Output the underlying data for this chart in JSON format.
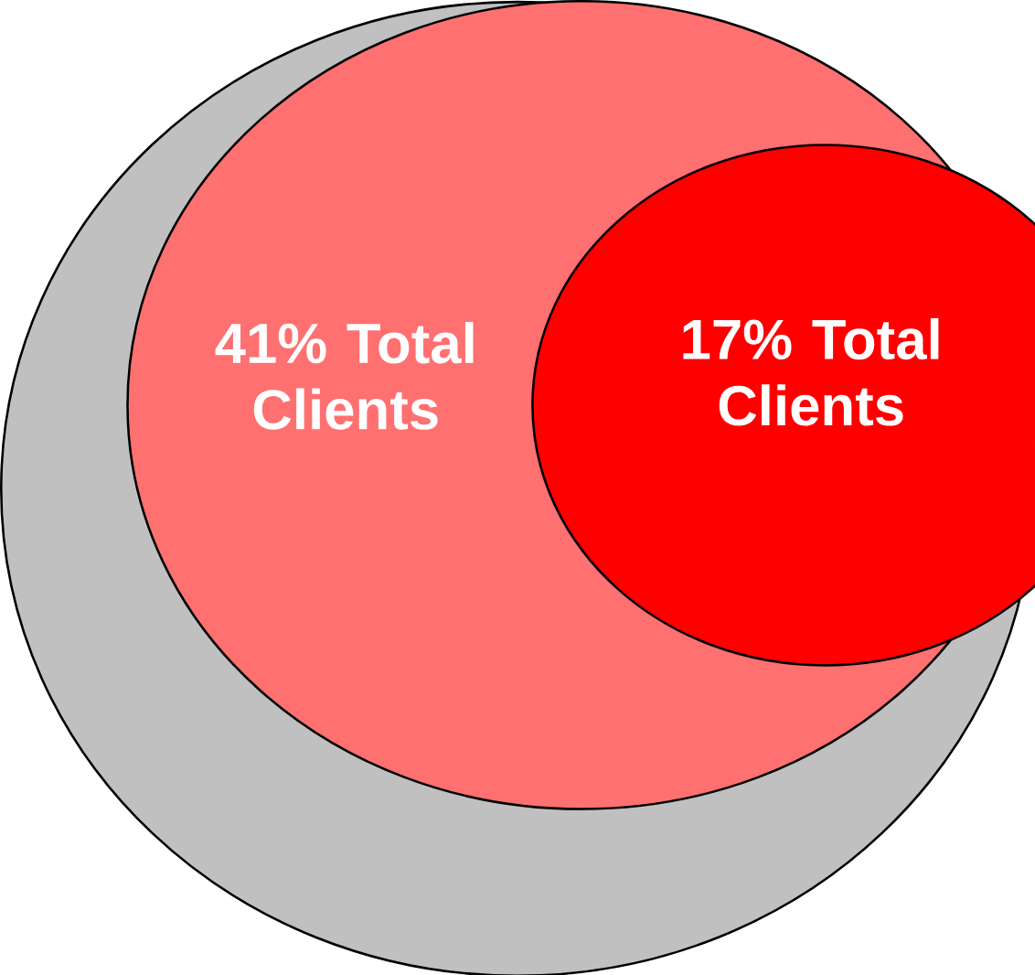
{
  "chart_data": {
    "type": "other",
    "categories": [
      "Total Clients",
      "Total Clients"
    ],
    "values": [
      41,
      17
    ],
    "value_labels": [
      "41%",
      "17%"
    ],
    "colors": [
      "#ff7070",
      "#ff0000"
    ]
  }
}
